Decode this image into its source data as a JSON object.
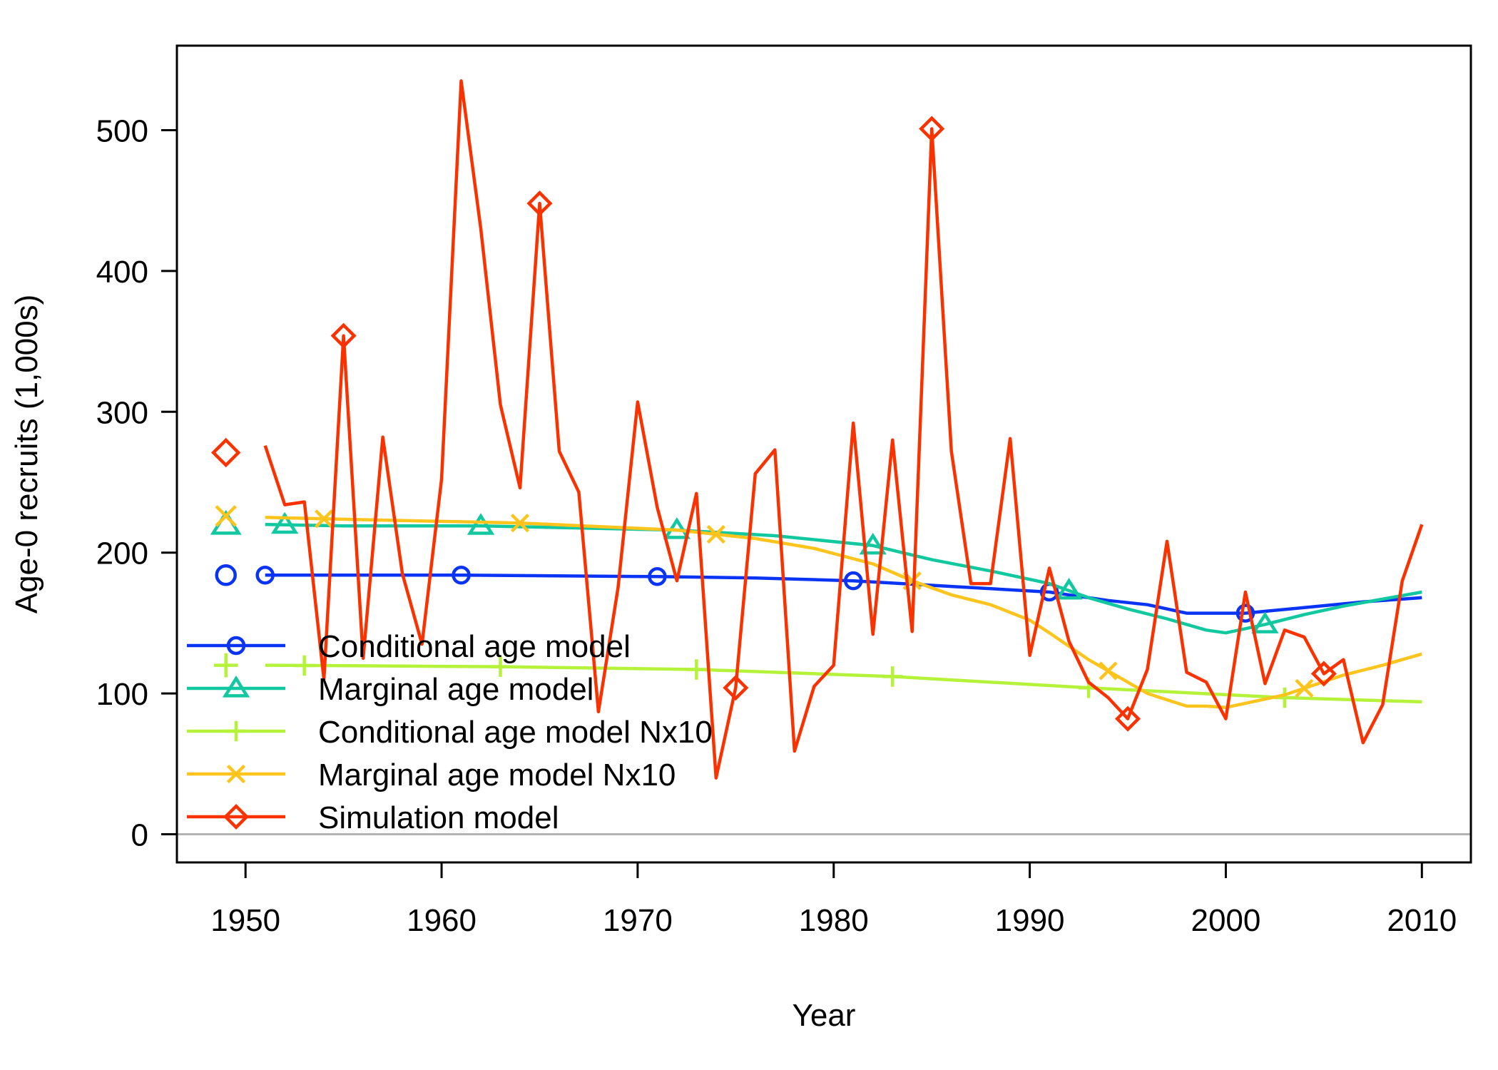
{
  "chart_data": {
    "type": "line",
    "xlabel": "Year",
    "ylabel": "Age-0 recruits (1,000s)",
    "xlim": [
      1946.5,
      2012.5
    ],
    "ylim": [
      -20,
      560
    ],
    "xticks": [
      1950,
      1960,
      1970,
      1980,
      1990,
      2000,
      2010
    ],
    "yticks": [
      0,
      100,
      200,
      300,
      400,
      500
    ],
    "reference_line_y": 0,
    "legend_position": "bottom-left",
    "series": [
      {
        "name": "Conditional age model",
        "color": "#0a34f5",
        "marker": "circle",
        "start_point": [
          1949,
          184
        ],
        "x": [
          1951,
          1961,
          1971,
          1976,
          1981,
          1986,
          1991,
          1994,
          1996,
          1998,
          2001,
          2004,
          2007,
          2010
        ],
        "y": [
          184,
          184,
          183,
          182,
          180,
          176,
          172,
          166,
          163,
          157,
          157,
          161,
          165,
          168
        ],
        "marker_x": [
          1951,
          1961,
          1971,
          1981,
          1991,
          2001
        ]
      },
      {
        "name": "Marginal age model",
        "color": "#12c8a0",
        "marker": "triangle",
        "start_point": [
          1949,
          220
        ],
        "x": [
          1951,
          1955,
          1962,
          1972,
          1977,
          1982,
          1985,
          1988,
          1991,
          1993,
          1995,
          1997,
          1999,
          2000,
          2002,
          2004,
          2006,
          2010
        ],
        "y": [
          220,
          219,
          219,
          216,
          212,
          205,
          195,
          187,
          178,
          168,
          160,
          153,
          145,
          143,
          149,
          156,
          162,
          172
        ],
        "marker_x": [
          1952,
          1962,
          1972,
          1982,
          1992,
          2002
        ]
      },
      {
        "name": "Conditional age model Nx10",
        "color": "#b5f23a",
        "marker": "plus",
        "start_point": [
          1949,
          120
        ],
        "x": [
          1951,
          1963,
          1973,
          1983,
          1993,
          2003,
          2010
        ],
        "y": [
          120,
          119,
          117,
          112,
          104,
          97,
          94
        ],
        "marker_x": [
          1953,
          1963,
          1973,
          1983,
          1993,
          2003
        ]
      },
      {
        "name": "Marginal age model Nx10",
        "color": "#fcc41c",
        "marker": "x",
        "start_point": [
          1949,
          226
        ],
        "x": [
          1951,
          1954,
          1964,
          1972,
          1976,
          1979,
          1982,
          1984,
          1986,
          1988,
          1990,
          1991,
          1993,
          1995,
          1996,
          1998,
          1999,
          2000,
          2003,
          2006,
          2008,
          2010
        ],
        "y": [
          225,
          224,
          221,
          216,
          210,
          203,
          192,
          180,
          170,
          163,
          152,
          143,
          124,
          108,
          100,
          91,
          91,
          90,
          99,
          113,
          120,
          128
        ],
        "marker_x": [
          1954,
          1964,
          1974,
          1984,
          1994,
          2004
        ]
      },
      {
        "name": "Simulation model",
        "color": "#fa3200",
        "marker": "diamond",
        "start_point": [
          1949,
          271
        ],
        "x": [
          1951,
          1952,
          1953,
          1954,
          1955,
          1956,
          1957,
          1958,
          1959,
          1960,
          1961,
          1962,
          1963,
          1964,
          1965,
          1966,
          1967,
          1968,
          1969,
          1970,
          1971,
          1972,
          1973,
          1974,
          1975,
          1976,
          1977,
          1978,
          1979,
          1980,
          1981,
          1982,
          1983,
          1984,
          1985,
          1986,
          1987,
          1988,
          1989,
          1990,
          1991,
          1992,
          1993,
          1994,
          1995,
          1996,
          1997,
          1998,
          1999,
          2000,
          2001,
          2002,
          2003,
          2004,
          2005,
          2006,
          2007,
          2008,
          2009,
          2010
        ],
        "y": [
          276,
          234,
          236,
          110,
          354,
          125,
          282,
          185,
          135,
          252,
          535,
          430,
          305,
          246,
          448,
          272,
          243,
          87,
          175,
          307,
          232,
          180,
          242,
          40,
          104,
          256,
          273,
          59,
          105,
          120,
          292,
          142,
          280,
          144,
          501,
          272,
          178,
          178,
          281,
          127,
          189,
          137,
          108,
          97,
          82,
          117,
          208,
          115,
          108,
          82,
          172,
          107,
          145,
          140,
          114,
          124,
          65,
          92,
          180,
          220
        ],
        "marker_x": [
          1955,
          1965,
          1975,
          1985,
          1995,
          2005
        ]
      }
    ]
  }
}
